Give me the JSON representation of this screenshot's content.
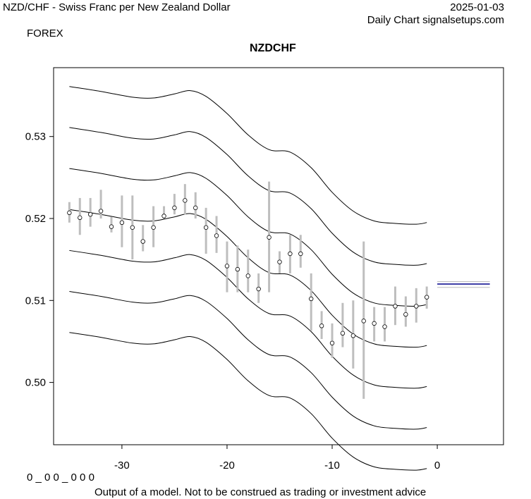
{
  "header": {
    "pair_title": "NZD/CHF - Swiss Franc per New Zealand Dollar",
    "date": "2025-01-03",
    "chart_kind": "Daily Chart signalsetups.com",
    "category": "FOREX"
  },
  "footer": {
    "code": "0 _ 0 0 _ 0 0 0",
    "disclaimer": "Output of a model. Not to be construed as trading or investment advice"
  },
  "colors": {
    "band": "#000000",
    "range": "#bebebe",
    "forecast_primary": "#00008b",
    "forecast_secondary": "#bebebe"
  },
  "chart_data": {
    "type": "line",
    "title": "NZDCHF",
    "xlabel": "",
    "ylabel": "",
    "xlim": [
      -36.5,
      6.3
    ],
    "ylim": [
      0.4924,
      0.5384
    ],
    "xticks": [
      -30,
      -20,
      -10,
      0
    ],
    "yticks": [
      0.5,
      0.51,
      0.52,
      0.53
    ],
    "xtick_labels": [
      "-30",
      "-20",
      "-10",
      "0"
    ],
    "ytick_labels": [
      "0.50",
      "0.51",
      "0.52",
      "0.53"
    ],
    "grid": false,
    "bands": {
      "x": [
        -35,
        -32,
        -29,
        -27,
        -25,
        -23.5,
        -22,
        -20,
        -18,
        -16,
        -14,
        -12,
        -10,
        -8,
        -6,
        -4,
        -2,
        -1
      ],
      "offsets": [
        -0.015,
        -0.01,
        -0.005,
        0,
        0.005,
        0.01,
        0.015
      ],
      "center": [
        0.5211,
        0.5205,
        0.5198,
        0.5197,
        0.5202,
        0.5206,
        0.5199,
        0.5178,
        0.5152,
        0.5134,
        0.5131,
        0.5112,
        0.5082,
        0.5059,
        0.5047,
        0.5044,
        0.5043,
        0.5045
      ]
    },
    "ranges": {
      "x": [
        -35,
        -34,
        -33,
        -32,
        -31,
        -30,
        -29,
        -28,
        -27,
        -26,
        -25,
        -24,
        -23,
        -22,
        -21,
        -20,
        -19,
        -18,
        -17,
        -16,
        -15,
        -14,
        -13,
        -12,
        -11,
        -10,
        -9,
        -8,
        -7,
        -6,
        -5,
        -4,
        -3,
        -2,
        -1
      ],
      "close": [
        0.5207,
        0.5201,
        0.5205,
        0.5209,
        0.519,
        0.5195,
        0.5189,
        0.5172,
        0.5189,
        0.5203,
        0.5213,
        0.5222,
        0.5213,
        0.5189,
        0.5179,
        0.5142,
        0.5138,
        0.513,
        0.5114,
        0.5177,
        0.5147,
        0.5157,
        0.5157,
        0.5102,
        0.5069,
        0.5048,
        0.506,
        0.5057,
        0.5075,
        0.5072,
        0.5068,
        0.5093,
        0.5083,
        0.5093,
        0.5104
      ],
      "low": [
        0.5195,
        0.518,
        0.519,
        0.52,
        0.5183,
        0.5165,
        0.515,
        0.516,
        0.5165,
        0.52,
        0.5205,
        0.5205,
        0.52,
        0.5157,
        0.5158,
        0.511,
        0.511,
        0.511,
        0.5097,
        0.511,
        0.5133,
        0.5133,
        0.514,
        0.5063,
        0.5053,
        0.503,
        0.5043,
        0.5017,
        0.498,
        0.505,
        0.505,
        0.507,
        0.5068,
        0.5073,
        0.509
      ],
      "high": [
        0.522,
        0.5225,
        0.5225,
        0.5235,
        0.5202,
        0.5228,
        0.5228,
        0.5192,
        0.5215,
        0.5215,
        0.523,
        0.5242,
        0.5232,
        0.5213,
        0.5203,
        0.5172,
        0.5167,
        0.5162,
        0.5133,
        0.5245,
        0.516,
        0.518,
        0.518,
        0.5133,
        0.5087,
        0.5072,
        0.5097,
        0.51,
        0.5172,
        0.5092,
        0.5092,
        0.5117,
        0.5105,
        0.5115,
        0.5117
      ]
    },
    "forecast": {
      "x_start": 0,
      "x_end": 5,
      "lines": [
        0.5116,
        0.512,
        0.5123
      ]
    }
  }
}
